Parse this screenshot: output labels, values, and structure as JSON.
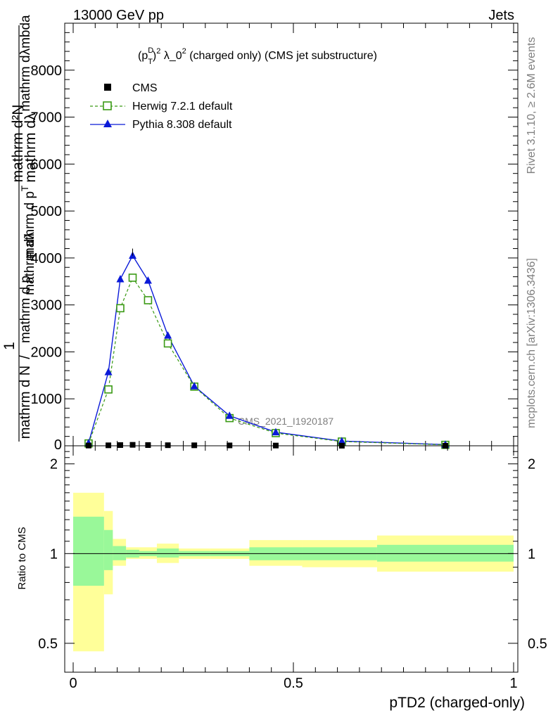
{
  "header": {
    "left_label": "13000 GeV pp",
    "right_label": "Jets"
  },
  "side_labels": {
    "rivet": "Rivet 3.1.10, ≥ 2.6M events",
    "mcplots": "mcplots.cern.ch [arXiv:1306.3436]"
  },
  "chart_data": [
    {
      "type": "line",
      "title_prefix": "(p",
      "title_sup_d": "D",
      "title_sub_t": "T",
      "title_exp": "2",
      "title_lambda": " λ_0",
      "title_rest": " (charged only) (CMS jet substructure)",
      "ylabel_numerator": "mathrm d²N",
      "ylabel_fragments": [
        "mathrm dλ",
        "mathrm d p",
        "T",
        "1",
        "mathrm d N",
        "/",
        "mathrm d p",
        "mathrm dλ",
        "mathrm dλmbda",
        "T"
      ],
      "watermark": "CMS_2021_I1920187",
      "xlim": [
        0,
        1
      ],
      "ylim": [
        0,
        9000
      ],
      "yticks": [
        1000,
        2000,
        3000,
        4000,
        5000,
        6000,
        7000,
        8000
      ],
      "ytick_labels": [
        "1000",
        "2000",
        "3000",
        "4000",
        "5000",
        "6000",
        "7000",
        "8000"
      ],
      "bottom_tick_label": "0",
      "legend": [
        {
          "name": "CMS",
          "marker": "filled-square",
          "color": "#000000"
        },
        {
          "name": "Herwig 7.2.1 default",
          "marker": "open-square-dashed",
          "color": "#3a9a14"
        },
        {
          "name": "Pythia 8.308 default",
          "marker": "filled-triangle",
          "color": "#0a1ad8"
        }
      ],
      "series": [
        {
          "name": "CMS",
          "x": [
            0.035,
            0.08,
            0.107,
            0.135,
            0.17,
            0.215,
            0.275,
            0.355,
            0.46,
            0.61,
            0.845
          ],
          "y": [
            5,
            10,
            15,
            20,
            15,
            12,
            10,
            8,
            5,
            2,
            1
          ]
        },
        {
          "name": "Herwig 7.2.1 default",
          "x": [
            0.035,
            0.08,
            0.107,
            0.135,
            0.17,
            0.215,
            0.275,
            0.355,
            0.46,
            0.61,
            0.845
          ],
          "y": [
            50,
            1200,
            2930,
            3580,
            3100,
            2180,
            1260,
            590,
            270,
            90,
            20
          ]
        },
        {
          "name": "Pythia 8.308 default",
          "x": [
            0.035,
            0.08,
            0.107,
            0.135,
            0.17,
            0.215,
            0.275,
            0.355,
            0.46,
            0.61,
            0.845
          ],
          "y": [
            60,
            1570,
            3550,
            4050,
            3520,
            2350,
            1270,
            640,
            290,
            100,
            25
          ]
        }
      ]
    },
    {
      "type": "area",
      "ylabel": "Ratio to CMS",
      "xlabel": "pTD2 (charged-only)",
      "xlim": [
        0,
        1
      ],
      "ylim": [
        0.4,
        2.3
      ],
      "log_y": true,
      "yticks": [
        0.5,
        1,
        2
      ],
      "ytick_labels": [
        "0.5",
        "1",
        "2"
      ],
      "xticks": [
        0,
        0.5,
        1
      ],
      "xtick_labels": [
        "0",
        "0.5",
        "1"
      ],
      "bands": {
        "edges": [
          0,
          0.07,
          0.09,
          0.12,
          0.15,
          0.19,
          0.24,
          0.31,
          0.4,
          0.52,
          0.69,
          1.0
        ],
        "inner_lo": [
          0.78,
          0.88,
          0.95,
          0.97,
          0.98,
          0.97,
          0.98,
          0.98,
          0.95,
          0.95,
          0.94
        ],
        "inner_hi": [
          1.33,
          1.2,
          1.06,
          1.03,
          1.02,
          1.04,
          1.02,
          1.02,
          1.05,
          1.05,
          1.07
        ],
        "outer_lo": [
          0.47,
          0.73,
          0.91,
          0.96,
          0.96,
          0.93,
          0.96,
          0.96,
          0.91,
          0.9,
          0.87
        ],
        "outer_hi": [
          1.6,
          1.39,
          1.12,
          1.05,
          1.05,
          1.08,
          1.04,
          1.04,
          1.11,
          1.11,
          1.15
        ],
        "inner_color": "#99f899",
        "outer_color": "#ffff99"
      }
    }
  ]
}
